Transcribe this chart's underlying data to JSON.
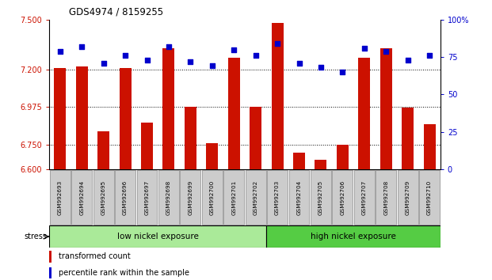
{
  "title": "GDS4974 / 8159255",
  "samples": [
    "GSM992693",
    "GSM992694",
    "GSM992695",
    "GSM992696",
    "GSM992697",
    "GSM992698",
    "GSM992699",
    "GSM992700",
    "GSM992701",
    "GSM992702",
    "GSM992703",
    "GSM992704",
    "GSM992705",
    "GSM992706",
    "GSM992707",
    "GSM992708",
    "GSM992709",
    "GSM992710"
  ],
  "bar_values": [
    7.21,
    7.22,
    6.83,
    7.21,
    6.88,
    7.33,
    6.975,
    6.76,
    7.27,
    6.975,
    7.48,
    6.7,
    6.66,
    6.75,
    7.27,
    7.33,
    6.97,
    6.87
  ],
  "percentile_values": [
    79,
    82,
    71,
    76,
    73,
    82,
    72,
    69,
    80,
    76,
    84,
    71,
    68,
    65,
    81,
    79,
    73,
    76
  ],
  "group1_label": "low nickel exposure",
  "group2_label": "high nickel exposure",
  "group1_count": 10,
  "group2_count": 8,
  "stress_label": "stress",
  "ymin": 6.6,
  "ymax": 7.5,
  "yticks": [
    6.6,
    6.75,
    6.975,
    7.2,
    7.5
  ],
  "y2min": 0,
  "y2max": 100,
  "y2ticks": [
    0,
    25,
    50,
    75,
    100
  ],
  "bar_color": "#cc1100",
  "dot_color": "#0000cc",
  "group1_color": "#aaea99",
  "group2_color": "#55cc44",
  "hline_y": [
    6.75,
    6.975,
    7.2
  ],
  "legend_bar_label": "transformed count",
  "legend_dot_label": "percentile rank within the sample",
  "bar_width": 0.55,
  "bg_color": "#ffffff",
  "label_bg": "#cccccc"
}
